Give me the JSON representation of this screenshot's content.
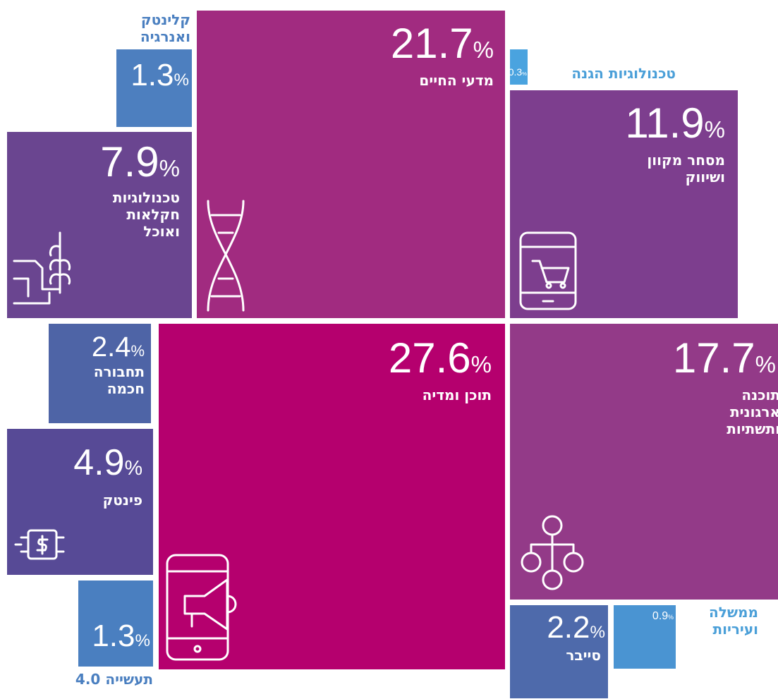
{
  "chart_data": {
    "type": "treemap",
    "unit": "%",
    "categories": [
      "מדעי החיים",
      "טכנולוגיות הגנה",
      "מסחר מקוון\nושיווק",
      "קלינטק\nואנרגיה",
      "טכנולוגיות\nחקלאות\nואוכל",
      "תוכן ומדיה",
      "תוכנה\nארגונית\nותשתיות",
      "תחבורה\nחכמה",
      "פינטק",
      "תעשייה 4.0",
      "סייבר",
      "ממשלה\nועיריות"
    ],
    "values": [
      21.7,
      0.3,
      11.9,
      1.3,
      7.9,
      27.6,
      17.7,
      2.4,
      4.9,
      1.3,
      2.2,
      0.9
    ],
    "colors": [
      "#a12b80",
      "#4aa3df",
      "#7d3e8e",
      "#4d7fbf",
      "#6a4590",
      "#b5006e",
      "#933a88",
      "#4e64a6",
      "#574a96",
      "#4a7fc0",
      "#4e6aab",
      "#4a94d2"
    ]
  }
}
